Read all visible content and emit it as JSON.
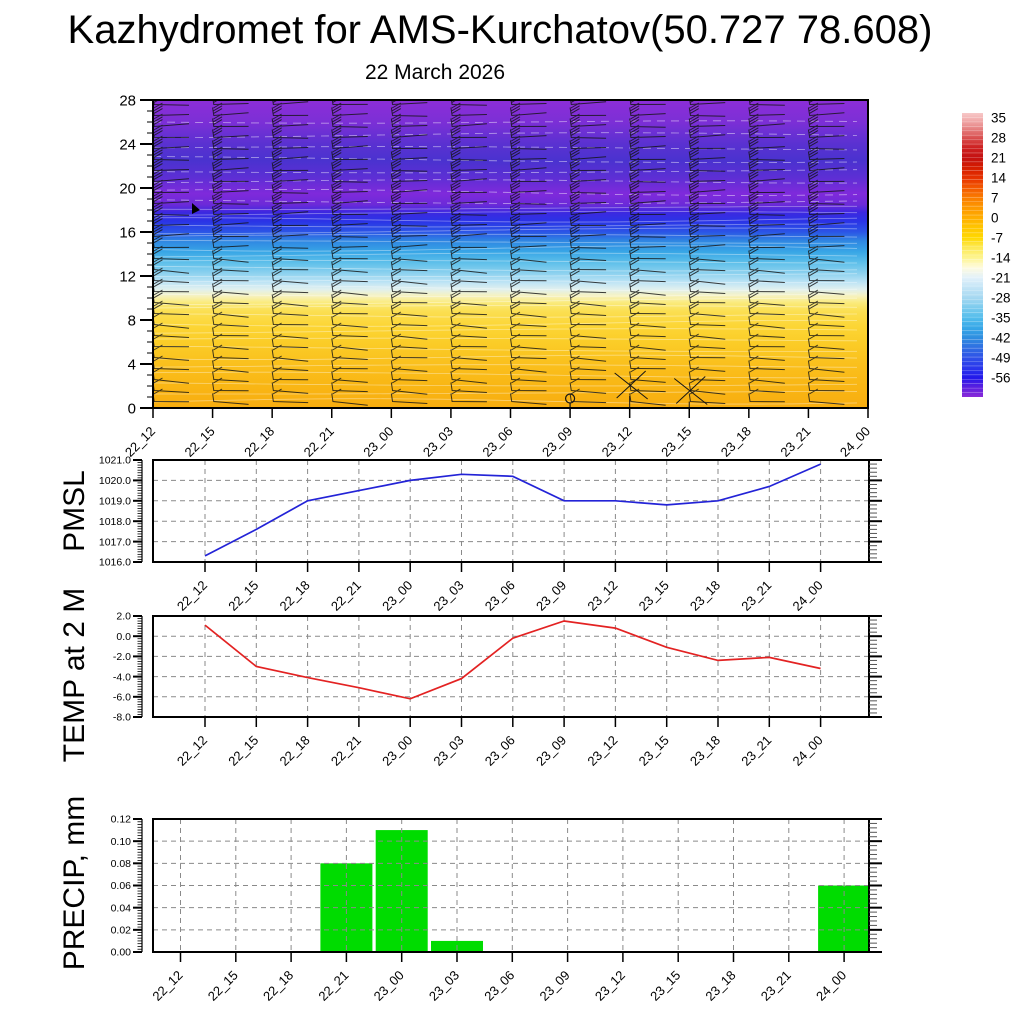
{
  "header": {
    "title": "Kazhydromet for AMS-Kurchatov(50.727 78.608)",
    "subtitle": "22 March 2026"
  },
  "time_axis": {
    "labels": [
      "22_12",
      "22_15",
      "22_18",
      "22_21",
      "23_00",
      "23_03",
      "23_06",
      "23_09",
      "23_12",
      "23_15",
      "23_18",
      "23_21",
      "24_00"
    ]
  },
  "colorbar": {
    "tick_labels": [
      "35",
      "28",
      "21",
      "14",
      "7",
      "0",
      "-7",
      "-14",
      "-21",
      "-28",
      "-35",
      "-42",
      "-49",
      "-56"
    ],
    "gradient_stops": [
      [
        0,
        "#f7c8c8"
      ],
      [
        0.02,
        "#f3b2b2"
      ],
      [
        0.05,
        "#e88a8a"
      ],
      [
        0.088,
        "#d94f4f"
      ],
      [
        0.12,
        "#ce2222"
      ],
      [
        0.158,
        "#c41111"
      ],
      [
        0.19,
        "#d41c00"
      ],
      [
        0.229,
        "#e63200"
      ],
      [
        0.26,
        "#f25500"
      ],
      [
        0.299,
        "#fa7d00"
      ],
      [
        0.33,
        "#fd9600"
      ],
      [
        0.369,
        "#ffae00"
      ],
      [
        0.4,
        "#ffc400"
      ],
      [
        0.44,
        "#ffd800"
      ],
      [
        0.47,
        "#fde84e"
      ],
      [
        0.51,
        "#fdf490"
      ],
      [
        0.545,
        "#fefbdf"
      ],
      [
        0.58,
        "#e2f1fa"
      ],
      [
        0.615,
        "#c2e4f6"
      ],
      [
        0.651,
        "#a5d8f1"
      ],
      [
        0.685,
        "#7ccbee"
      ],
      [
        0.721,
        "#53bdec"
      ],
      [
        0.755,
        "#37a8e8"
      ],
      [
        0.791,
        "#2f8ee0"
      ],
      [
        0.825,
        "#2f6fe2"
      ],
      [
        0.862,
        "#2f51e8"
      ],
      [
        0.9,
        "#2a35ec"
      ],
      [
        0.932,
        "#2318ea"
      ],
      [
        0.965,
        "#5a1fe0"
      ],
      [
        1,
        "#8a2ad8"
      ]
    ]
  },
  "chart_data": [
    {
      "id": "cross_section",
      "type": "heatmap",
      "title": "22 March 2026",
      "x": [
        "22_12",
        "22_15",
        "22_18",
        "22_21",
        "23_00",
        "23_03",
        "23_06",
        "23_09",
        "23_12",
        "23_15",
        "23_18",
        "23_21",
        "24_00"
      ],
      "y_range_km": [
        0,
        28
      ],
      "ytick_labels": [
        "0",
        "4",
        "8",
        "12",
        "16",
        "20",
        "24",
        "28"
      ],
      "shading": "temperature filled contours in degC, legend 35 to -56 step -7",
      "colorbar_tick_labels": [
        "35",
        "28",
        "21",
        "14",
        "7",
        "0",
        "-7",
        "-14",
        "-21",
        "-28",
        "-35",
        "-42",
        "-49",
        "-56"
      ],
      "color_bands_by_height": [
        {
          "km": 28,
          "color": "#8c2ed8"
        },
        {
          "km": 26,
          "color": "#7c2fd6"
        },
        {
          "km": 24,
          "color": "#5a31d1"
        },
        {
          "km": 22.5,
          "color": "#4a32cf"
        },
        {
          "km": 21,
          "color": "#5c2fd4"
        },
        {
          "km": 19.5,
          "color": "#7f2adb"
        },
        {
          "km": 18.5,
          "color": "#6c2ad8"
        },
        {
          "km": 17.8,
          "color": "#3d28e0"
        },
        {
          "km": 17,
          "color": "#2b33e6"
        },
        {
          "km": 16,
          "color": "#2b55e6"
        },
        {
          "km": 15.2,
          "color": "#2f86e2"
        },
        {
          "km": 14.2,
          "color": "#38a6e6"
        },
        {
          "km": 13.2,
          "color": "#5fc0ea"
        },
        {
          "km": 12.2,
          "color": "#8fd2ef"
        },
        {
          "km": 11.4,
          "color": "#bfe4f5"
        },
        {
          "km": 10.8,
          "color": "#e0f0ef"
        },
        {
          "km": 10.2,
          "color": "#f6f2c0"
        },
        {
          "km": 9.6,
          "color": "#faeb7e"
        },
        {
          "km": 8.8,
          "color": "#fbdf52"
        },
        {
          "km": 7.5,
          "color": "#fcd636"
        },
        {
          "km": 6,
          "color": "#fbcd28"
        },
        {
          "km": 4,
          "color": "#fac01d"
        },
        {
          "km": 2,
          "color": "#f9b614"
        },
        {
          "km": 0,
          "color": "#f8ad10"
        }
      ],
      "overlays": {
        "wind_barbs": "black wind barbs at each 3-h step, levels about every 1 km from 0 to 28 km",
        "contour_lines": "thin white temperature contour lines",
        "specials": [
          {
            "time": "23_09",
            "km": 0.5,
            "type": "calm-circle"
          },
          {
            "time": "23_12",
            "km": 2.0,
            "type": "cross-barb"
          },
          {
            "time": "23_15",
            "km": 1.5,
            "type": "cross-barb"
          },
          {
            "time": "22_12",
            "km": 18.0,
            "type": "pennant-flag"
          }
        ]
      }
    },
    {
      "id": "pmsl",
      "type": "line",
      "ylabel": "PMSL",
      "color": "#2323d7",
      "x": [
        "22_12",
        "22_15",
        "22_18",
        "22_21",
        "23_00",
        "23_03",
        "23_06",
        "23_09",
        "23_12",
        "23_15",
        "23_18",
        "23_21",
        "24_00"
      ],
      "values": [
        1016.3,
        1017.6,
        1019.0,
        1019.5,
        1020.0,
        1020.3,
        1020.2,
        1019.0,
        1019.0,
        1018.8,
        1019.0,
        1019.7,
        1020.8
      ],
      "ylim": [
        1016,
        1021
      ],
      "ytick_labels": [
        "1021.0",
        "1020.0",
        "1019.0",
        "1018.0",
        "1017.0",
        "1016.0"
      ],
      "grid": "dashed gray, vertical at every time, horizontal at every 1 hPa"
    },
    {
      "id": "temp_2m",
      "type": "line",
      "ylabel": "TEMP at 2 M",
      "color": "#e32222",
      "x": [
        "22_12",
        "22_15",
        "22_18",
        "22_21",
        "23_00",
        "23_03",
        "23_06",
        "23_09",
        "23_12",
        "23_15",
        "23_18",
        "23_21",
        "24_00"
      ],
      "values": [
        1.1,
        -3.0,
        -4.1,
        -5.1,
        -6.2,
        -4.2,
        -0.2,
        1.5,
        0.8,
        -1.1,
        -2.4,
        -2.1,
        -3.2
      ],
      "ylim": [
        -8,
        2
      ],
      "ytick_labels": [
        "2.0",
        "0.0",
        "-2.0",
        "-4.0",
        "-6.0",
        "-8.0"
      ],
      "grid": "dashed gray, vertical at every time, horizontal at every 2 degC"
    },
    {
      "id": "precip",
      "type": "bar",
      "ylabel": "PRECIP, mm",
      "color": "#00dc00",
      "x": [
        "22_12",
        "22_15",
        "22_18",
        "22_21",
        "23_00",
        "23_03",
        "23_06",
        "23_09",
        "23_12",
        "23_15",
        "23_18",
        "23_21",
        "24_00"
      ],
      "values": [
        0,
        0,
        0,
        0.08,
        0.11,
        0.01,
        0,
        0,
        0,
        0,
        0,
        0,
        0.06
      ],
      "ylim": [
        0,
        0.12
      ],
      "ytick_labels": [
        "0.12",
        "0.10",
        "0.08",
        "0.06",
        "0.04",
        "0.02",
        "0.00"
      ],
      "grid": "dashed gray, vertical at every time, horizontal at every 0.02 mm"
    }
  ]
}
